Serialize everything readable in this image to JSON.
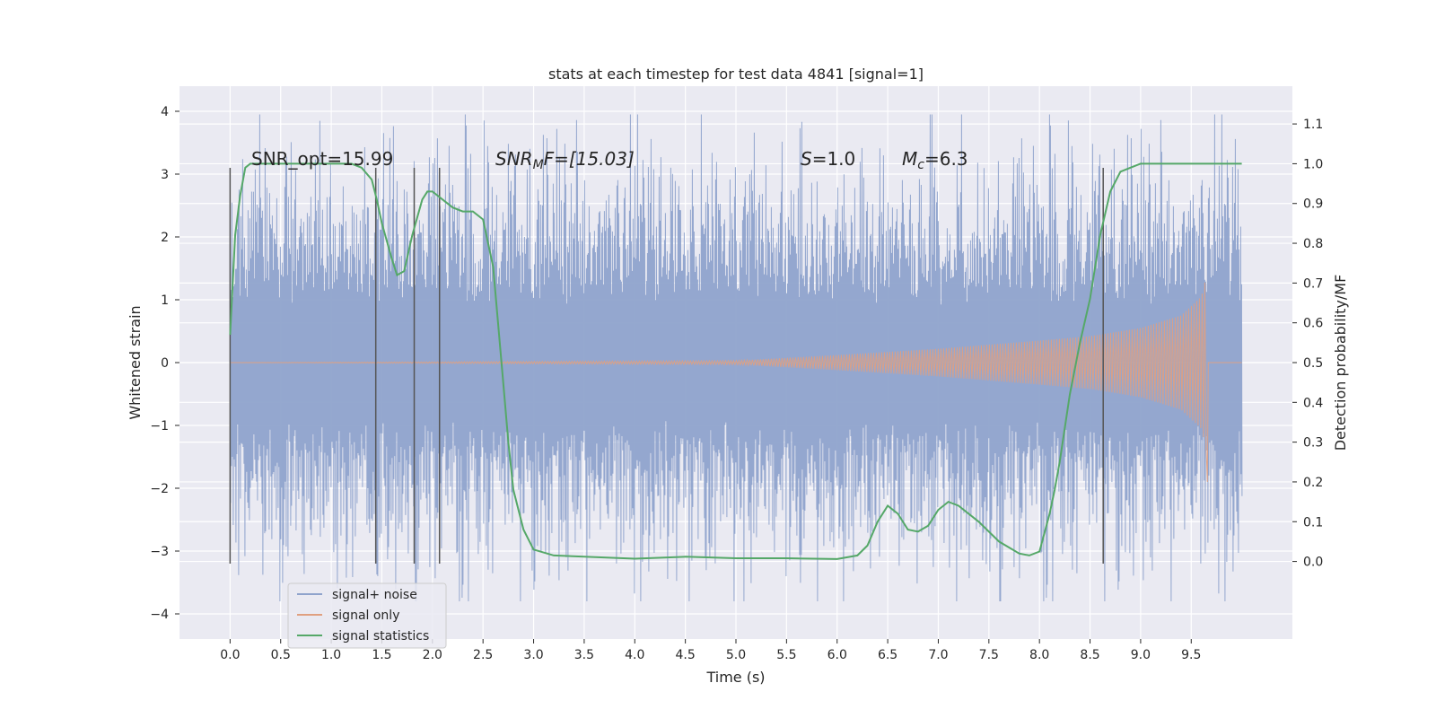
{
  "chart_data": {
    "type": "line",
    "title": "stats at each timestep for test data 4841 [signal=1]",
    "xlabel": "Time (s)",
    "ylabel_left": "Whitened strain",
    "ylabel_right": "Detection probability/MF",
    "xlim": [
      -0.5,
      10.5
    ],
    "ylim_left": [
      -4.4,
      4.4
    ],
    "ylim_right": [
      -0.195,
      1.195
    ],
    "x_ticks": [
      "0.0",
      "0.5",
      "1.0",
      "1.5",
      "2.0",
      "2.5",
      "3.0",
      "3.5",
      "4.0",
      "4.5",
      "5.0",
      "5.5",
      "6.0",
      "6.5",
      "7.0",
      "7.5",
      "8.0",
      "8.5",
      "9.0",
      "9.5"
    ],
    "y_left_ticks": [
      "4",
      "3",
      "2",
      "1",
      "0",
      "−1",
      "−2",
      "−3",
      "−4"
    ],
    "y_right_ticks": [
      "1.1",
      "1.0",
      "0.9",
      "0.8",
      "0.7",
      "0.6",
      "0.5",
      "0.4",
      "0.3",
      "0.2",
      "0.1",
      "0.0"
    ],
    "grid": true,
    "legend_position": "lower-left",
    "annotations": {
      "snr_opt": "SNR_opt=15.99",
      "snr_mf_italic": "SNR",
      "snr_mf_sub": "M",
      "snr_mf_tail": "F=[15.03]",
      "s_italic": "S",
      "s_tail": "=1.0",
      "mc_italic": "M",
      "mc_sub": "c",
      "mc_tail": "=6.3"
    },
    "vertical_markers": [
      0.0,
      1.44,
      1.82,
      2.07,
      8.63
    ],
    "marker_range": [
      -3.2,
      3.1
    ],
    "series": [
      {
        "name": "signal+ noise",
        "color": "#8fa3cc",
        "x_range": [
          0.0,
          10.0
        ],
        "y_range": [
          -3.8,
          3.95
        ],
        "typical_amplitude": 2.1
      },
      {
        "name": "signal only",
        "color": "#e0a080",
        "x_range": [
          0.0,
          9.66
        ],
        "envelope": {
          "x": [
            0.0,
            5.0,
            6.0,
            7.0,
            8.0,
            8.5,
            9.0,
            9.4,
            9.6,
            9.66
          ],
          "y": [
            0.0,
            0.03,
            0.12,
            0.22,
            0.35,
            0.42,
            0.55,
            0.75,
            1.05,
            1.45
          ]
        }
      },
      {
        "name": "signal statistics",
        "color": "#55a868",
        "axis": "right",
        "x": [
          0.0,
          0.05,
          0.1,
          0.15,
          0.2,
          0.3,
          0.5,
          0.8,
          1.0,
          1.2,
          1.3,
          1.4,
          1.45,
          1.5,
          1.6,
          1.65,
          1.72,
          1.8,
          1.9,
          1.95,
          2.0,
          2.1,
          2.2,
          2.3,
          2.4,
          2.5,
          2.6,
          2.7,
          2.75,
          2.8,
          2.9,
          3.0,
          3.2,
          3.5,
          4.0,
          4.5,
          5.0,
          5.5,
          6.0,
          6.2,
          6.3,
          6.4,
          6.5,
          6.6,
          6.7,
          6.8,
          6.9,
          7.0,
          7.1,
          7.2,
          7.4,
          7.6,
          7.8,
          7.9,
          8.0,
          8.1,
          8.15,
          8.2,
          8.3,
          8.4,
          8.5,
          8.6,
          8.7,
          8.8,
          8.9,
          9.0,
          9.2,
          9.5,
          10.0
        ],
        "y": [
          0.57,
          0.82,
          0.92,
          0.99,
          1.0,
          1.0,
          1.0,
          1.0,
          1.0,
          1.0,
          0.99,
          0.96,
          0.91,
          0.85,
          0.76,
          0.72,
          0.73,
          0.82,
          0.91,
          0.93,
          0.93,
          0.91,
          0.89,
          0.88,
          0.88,
          0.86,
          0.74,
          0.45,
          0.3,
          0.18,
          0.08,
          0.03,
          0.015,
          0.012,
          0.007,
          0.012,
          0.008,
          0.008,
          0.006,
          0.015,
          0.04,
          0.1,
          0.14,
          0.12,
          0.08,
          0.075,
          0.09,
          0.13,
          0.15,
          0.14,
          0.1,
          0.05,
          0.02,
          0.015,
          0.025,
          0.12,
          0.18,
          0.25,
          0.42,
          0.55,
          0.66,
          0.82,
          0.93,
          0.98,
          0.99,
          1.0,
          1.0,
          1.0,
          1.0
        ]
      }
    ]
  }
}
